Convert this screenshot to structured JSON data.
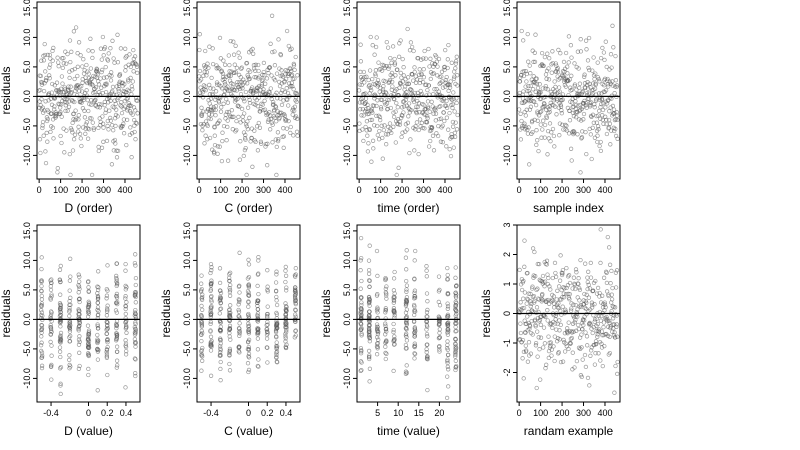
{
  "chart_data": [
    {
      "type": "scatter",
      "xlabel": "D (order)",
      "ylabel": "residuals",
      "xlim": [
        -10,
        470
      ],
      "ylim": [
        -14,
        16
      ],
      "xticks": [
        0,
        100,
        200,
        300,
        400
      ],
      "yticks": [
        -10,
        -5,
        0,
        5,
        10,
        15
      ],
      "zero_line": 0,
      "x_kind": "index",
      "n": 460,
      "spread": 4.5
    },
    {
      "type": "scatter",
      "xlabel": "C (order)",
      "ylabel": "residuals",
      "xlim": [
        -10,
        470
      ],
      "ylim": [
        -14,
        16
      ],
      "xticks": [
        0,
        100,
        200,
        300,
        400
      ],
      "yticks": [
        -10,
        -5,
        0,
        5,
        10,
        15
      ],
      "zero_line": 0,
      "x_kind": "index",
      "n": 460,
      "spread": 4.5
    },
    {
      "type": "scatter",
      "xlabel": "time (order)",
      "ylabel": "residuals",
      "xlim": [
        -10,
        470
      ],
      "ylim": [
        -14,
        16
      ],
      "xticks": [
        0,
        100,
        200,
        300,
        400
      ],
      "yticks": [
        -10,
        -5,
        0,
        5,
        10,
        15
      ],
      "zero_line": 0,
      "x_kind": "index",
      "n": 460,
      "spread": 4.5
    },
    {
      "type": "scatter",
      "xlabel": "sample index",
      "ylabel": "residuals",
      "xlim": [
        -10,
        470
      ],
      "ylim": [
        -14,
        16
      ],
      "xticks": [
        0,
        100,
        200,
        300,
        400
      ],
      "yticks": [
        -10,
        -5,
        0,
        5,
        10,
        15
      ],
      "zero_line": 0,
      "x_kind": "index",
      "n": 460,
      "spread": 4.5
    },
    {
      "type": "scatter",
      "xlabel": "D (value)",
      "ylabel": "residuals",
      "xlim": [
        -0.55,
        0.55
      ],
      "ylim": [
        -14,
        16
      ],
      "xticks": [
        -0.4,
        0.0,
        0.2,
        0.4
      ],
      "yticks": [
        -10,
        -5,
        0,
        5,
        10,
        15
      ],
      "zero_line": 0,
      "x_kind": "clustered",
      "x_levels": [
        -0.5,
        -0.4,
        -0.3,
        -0.2,
        -0.1,
        0.0,
        0.1,
        0.2,
        0.3,
        0.4,
        0.5
      ],
      "n": 400,
      "spread": 4.5
    },
    {
      "type": "scatter",
      "xlabel": "C (value)",
      "ylabel": "residuals",
      "xlim": [
        -0.55,
        0.55
      ],
      "ylim": [
        -14,
        16
      ],
      "xticks": [
        -0.4,
        0.0,
        0.2,
        0.4
      ],
      "yticks": [
        -10,
        -5,
        0,
        5,
        10,
        15
      ],
      "zero_line": 0,
      "x_kind": "clustered",
      "x_levels": [
        -0.5,
        -0.4,
        -0.3,
        -0.2,
        -0.1,
        0.0,
        0.1,
        0.2,
        0.3,
        0.4,
        0.5
      ],
      "n": 400,
      "spread": 4.5
    },
    {
      "type": "scatter",
      "xlabel": "time (value)",
      "ylabel": "residuals",
      "xlim": [
        0,
        25
      ],
      "ylim": [
        -14,
        16
      ],
      "xticks": [
        5,
        10,
        15,
        20
      ],
      "yticks": [
        -10,
        -5,
        0,
        5,
        10,
        15
      ],
      "zero_line": 0,
      "x_kind": "clustered",
      "x_levels": [
        1,
        3,
        5,
        7,
        9,
        12,
        14,
        17,
        20,
        22,
        24
      ],
      "n": 400,
      "spread": 4.5
    },
    {
      "type": "scatter",
      "xlabel": "randam example",
      "ylabel": "residuals",
      "xlim": [
        -10,
        470
      ],
      "ylim": [
        -3,
        3
      ],
      "xticks": [
        0,
        100,
        200,
        300,
        400
      ],
      "yticks": [
        -2,
        -1,
        0,
        1,
        2,
        3
      ],
      "zero_line": 0,
      "x_kind": "index",
      "n": 460,
      "spread": 1.0
    }
  ]
}
